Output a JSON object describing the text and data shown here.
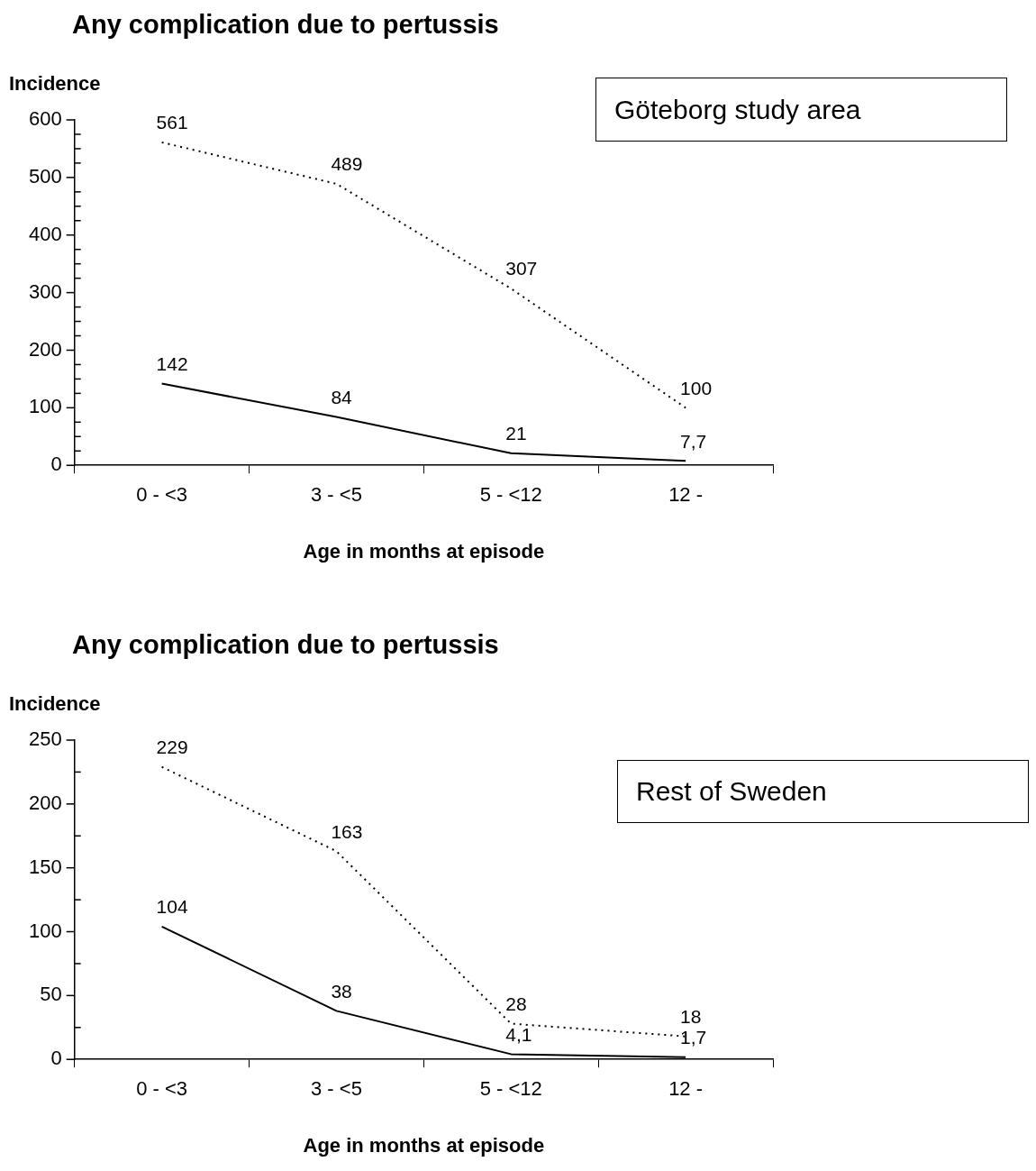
{
  "chart_data": [
    {
      "type": "line",
      "title": "Any complication due to pertussis",
      "ylabel": "Incidence",
      "xlabel": "Age in months at episode",
      "categories": [
        "0 - <3",
        "3 - <5",
        "5 - <12",
        "12 -"
      ],
      "series": [
        {
          "color": "#000000",
          "line_style": "dotted",
          "values": [
            561,
            489,
            307,
            100
          ],
          "value_labels": [
            "561",
            "489",
            "307",
            "100"
          ]
        },
        {
          "color": "#000000",
          "line_style": "solid",
          "values": [
            142,
            84,
            21,
            7.7
          ],
          "value_labels": [
            "142",
            "84",
            "21",
            "7,7"
          ]
        }
      ],
      "ylim": [
        0,
        600
      ],
      "yticks": [
        0,
        {
          "value": 25,
          "label": null
        },
        {
          "value": 50,
          "label": null
        },
        {
          "value": 75,
          "label": null
        },
        100,
        {
          "value": 125,
          "label": null
        },
        {
          "value": 150,
          "label": null
        },
        {
          "value": 175,
          "label": null
        },
        200,
        {
          "value": 225,
          "label": null
        },
        {
          "value": 250,
          "label": null
        },
        {
          "value": 275,
          "label": null
        },
        300,
        {
          "value": 325,
          "label": null
        },
        {
          "value": 350,
          "label": null
        },
        {
          "value": 375,
          "label": null
        },
        400,
        {
          "value": 425,
          "label": null
        },
        {
          "value": 450,
          "label": null
        },
        {
          "value": 475,
          "label": null
        },
        500,
        {
          "value": 525,
          "label": null
        },
        {
          "value": 550,
          "label": null
        },
        {
          "value": 575,
          "label": null
        },
        600
      ],
      "marker": "none",
      "grid": false,
      "legend": false,
      "annotations": [
        "Göteborg study area"
      ]
    },
    {
      "type": "line",
      "title": "Any complication due to pertussis",
      "ylabel": "Incidence",
      "xlabel": "Age in months at episode",
      "categories": [
        "0 - <3",
        "3 - <5",
        "5 - <12",
        "12 -"
      ],
      "series": [
        {
          "color": "#000000",
          "line_style": "dotted",
          "values": [
            229,
            163,
            28,
            18
          ],
          "value_labels": [
            "229",
            "163",
            "28",
            "18"
          ]
        },
        {
          "color": "#000000",
          "line_style": "solid",
          "values": [
            104,
            38,
            4.1,
            1.7
          ],
          "value_labels": [
            "104",
            "38",
            "4,1",
            "1,7"
          ]
        }
      ],
      "ylim": [
        0,
        250
      ],
      "yticks": [
        0,
        {
          "value": 25,
          "label": null
        },
        50,
        {
          "value": 75,
          "label": null
        },
        100,
        {
          "value": 125,
          "label": null
        },
        150,
        {
          "value": 175,
          "label": null
        },
        200,
        {
          "value": 225,
          "label": null
        },
        250
      ],
      "marker": "none",
      "grid": false,
      "legend": false,
      "annotations": [
        "Rest of Sweden"
      ]
    }
  ]
}
